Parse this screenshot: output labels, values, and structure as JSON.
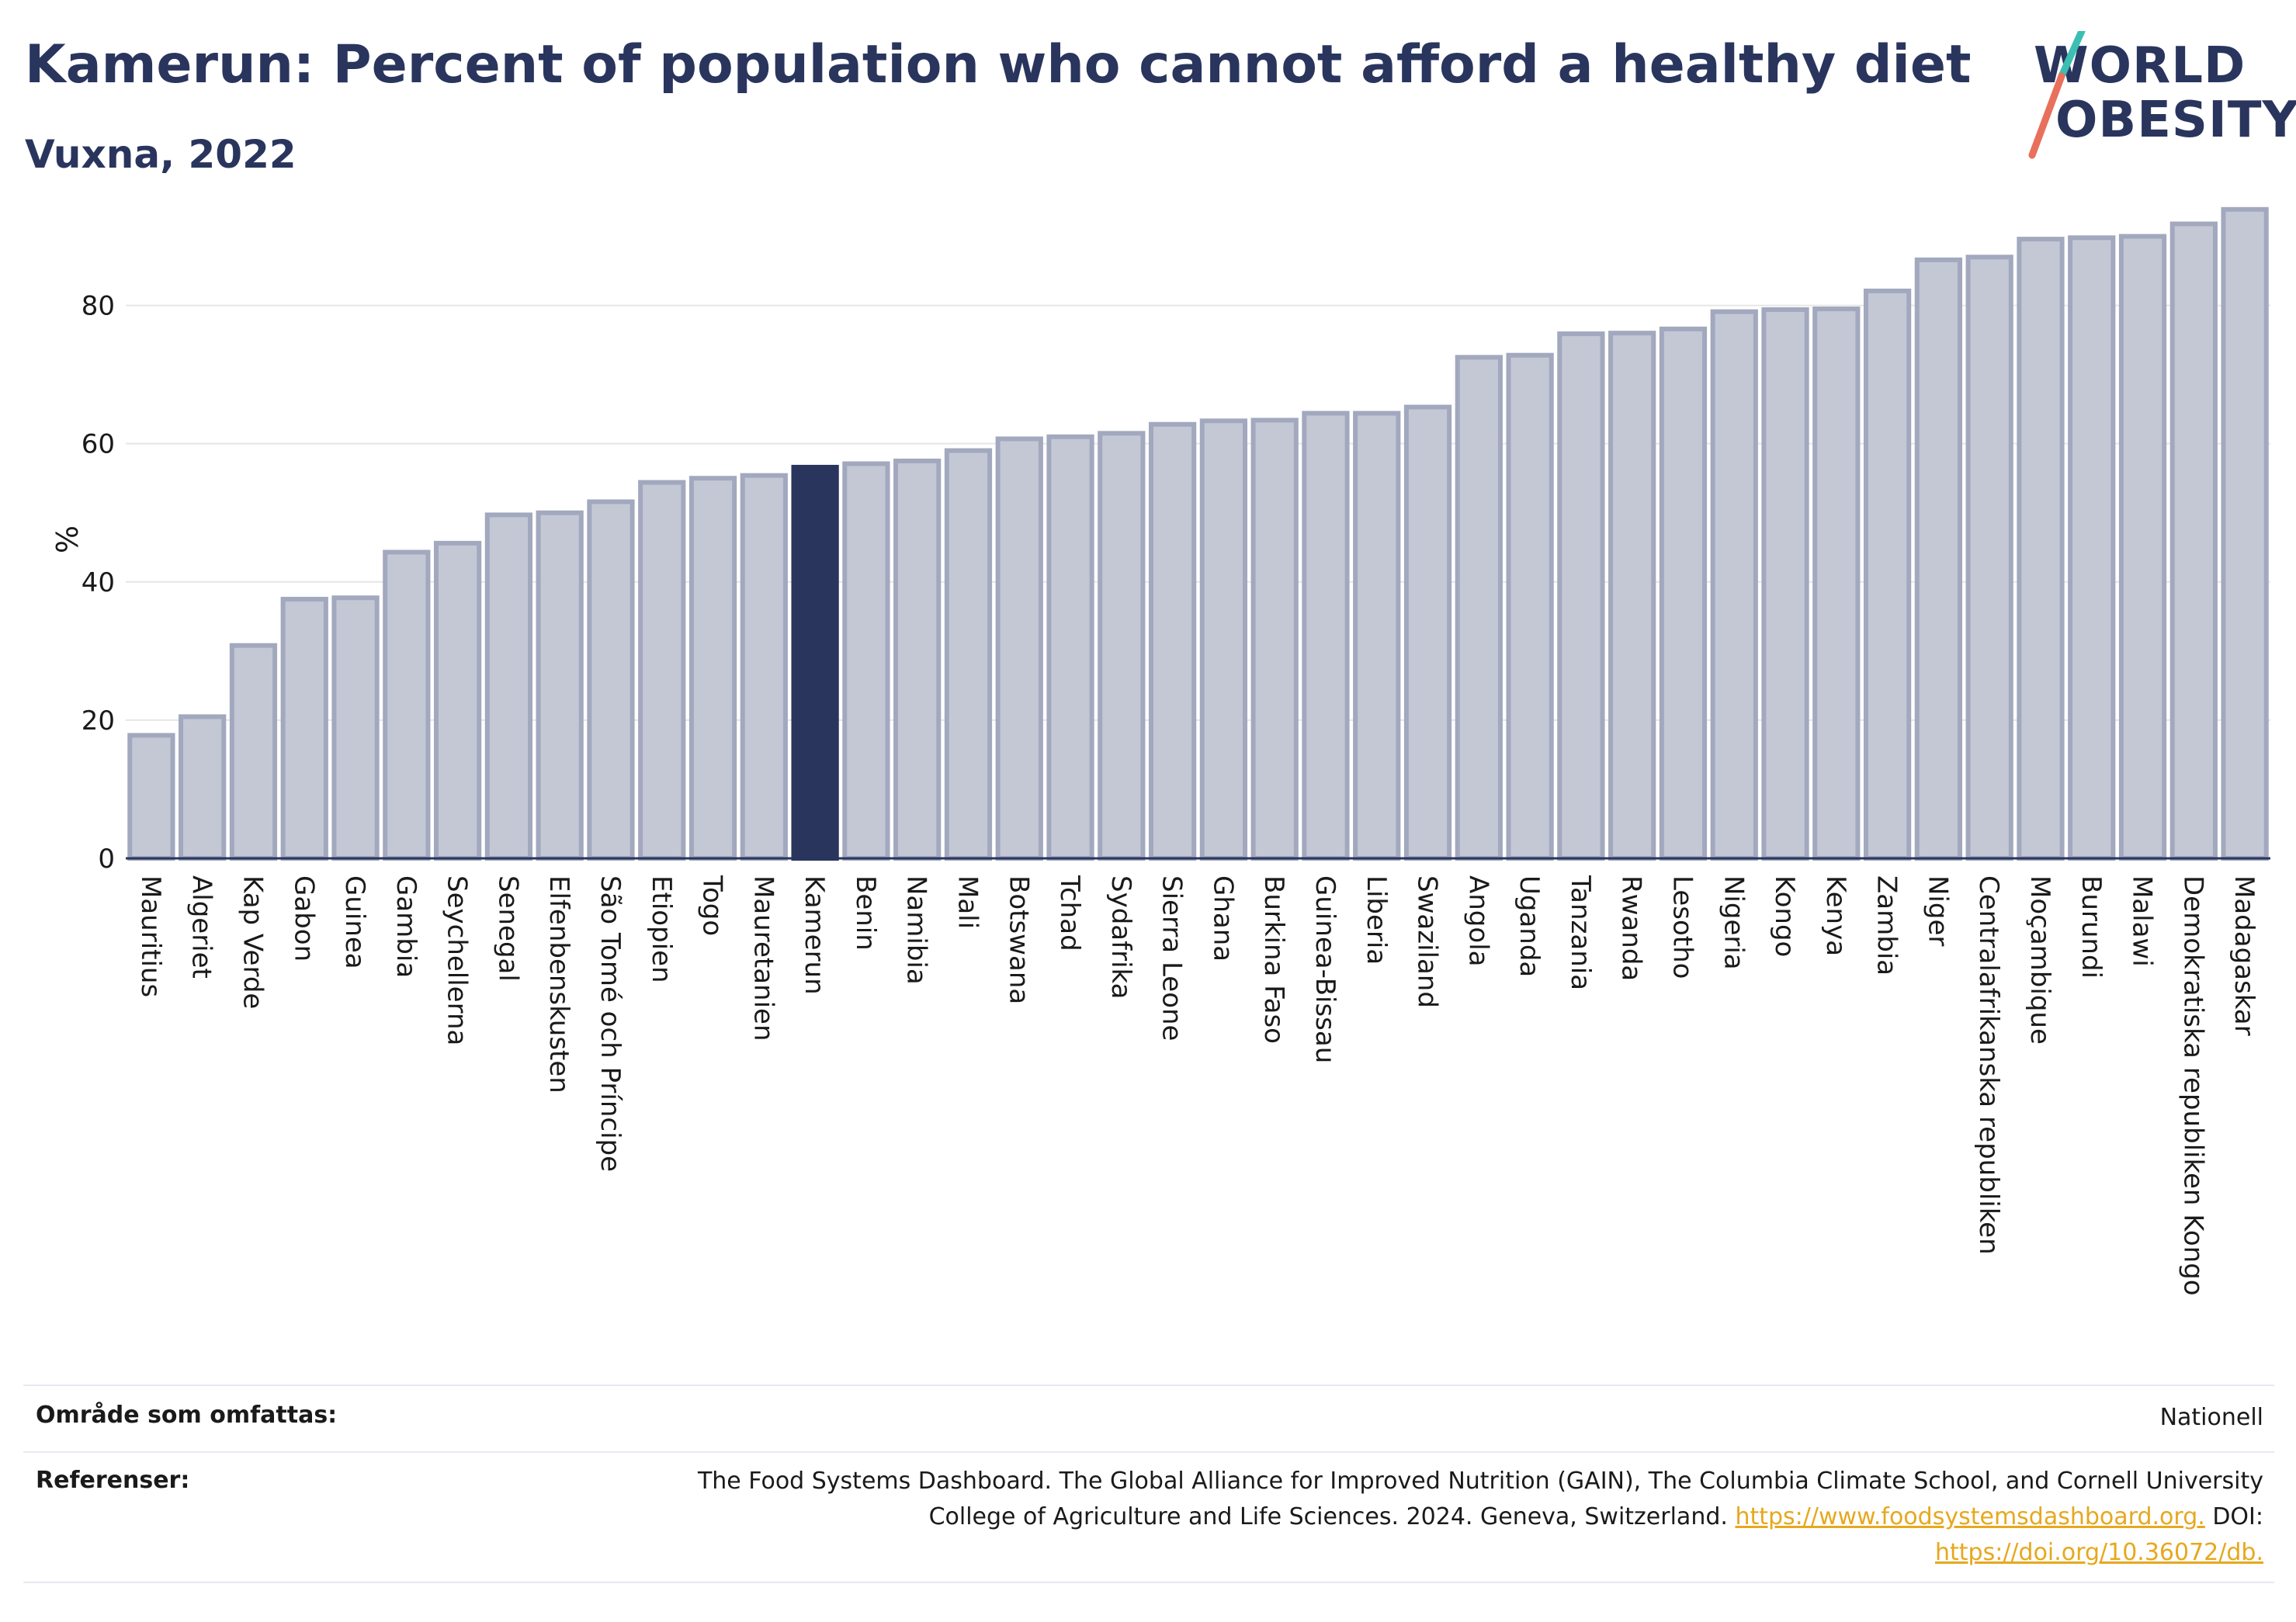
{
  "header": {
    "title": "Kamerun: Percent of population who cannot afford a healthy diet",
    "subtitle": "Vuxna, 2022"
  },
  "logo": {
    "line1": "WORLD",
    "line2": "OBESITY",
    "colors": {
      "text": "#2a355e",
      "slash_top": "#3bbfb3",
      "slash_bottom": "#e8705c"
    }
  },
  "chart_data": {
    "type": "bar",
    "ylabel": "%",
    "ylim": [
      0,
      95
    ],
    "yticks": [
      0,
      20,
      40,
      60,
      80
    ],
    "grid": true,
    "highlight": "Kamerun",
    "colors": {
      "bar": "#c4c8d5",
      "bar_border": "#a2a8be",
      "highlight": "#2a355e",
      "grid": "#e6e6e6",
      "axis": "#2a355e"
    },
    "categories": [
      "Mauritius",
      "Algeriet",
      "Kap Verde",
      "Gabon",
      "Guinea",
      "Gambia",
      "Seychellerna",
      "Senegal",
      "Elfenbenskusten",
      "São Tomé och Príncipe",
      "Etiopien",
      "Togo",
      "Mauretanien",
      "Kamerun",
      "Benin",
      "Namibia",
      "Mali",
      "Botswana",
      "Tchad",
      "Sydafrika",
      "Sierra Leone",
      "Ghana",
      "Burkina Faso",
      "Guinea-Bissau",
      "Liberia",
      "Swaziland",
      "Angola",
      "Uganda",
      "Tanzania",
      "Rwanda",
      "Lesotho",
      "Nigeria",
      "Kongo",
      "Kenya",
      "Zambia",
      "Niger",
      "Centralafrikanska republiken",
      "Moçambique",
      "Burundi",
      "Malawi",
      "Demokratiska republiken Kongo",
      "Madagaskar"
    ],
    "values": [
      17.8,
      20.5,
      30.8,
      37.5,
      37.7,
      44.3,
      45.6,
      49.7,
      50.0,
      51.6,
      54.4,
      55.0,
      55.4,
      56.6,
      57.1,
      57.5,
      59.0,
      60.7,
      61.0,
      61.5,
      62.8,
      63.3,
      63.4,
      64.4,
      64.4,
      65.3,
      72.5,
      72.8,
      75.9,
      76.0,
      76.6,
      79.1,
      79.4,
      79.5,
      82.1,
      86.6,
      87.0,
      89.6,
      89.8,
      90.0,
      91.8,
      93.9
    ]
  },
  "footer": {
    "coverage_label": "Område som omfattas:",
    "coverage_value": "Nationell",
    "references_label": "Referenser:",
    "ref_line1": "The Food Systems Dashboard. The Global Alliance for Improved Nutrition (GAIN), The Columbia Climate School, and Cornell University",
    "ref_line2_text": "College of Agriculture and Life Sciences. 2024. Geneva, Switzerland.",
    "ref_link1": "https://www.foodsystemsdashboard.org.",
    "ref_doi_label": "DOI:",
    "ref_link2": "https://doi.org/10.36072/db."
  }
}
